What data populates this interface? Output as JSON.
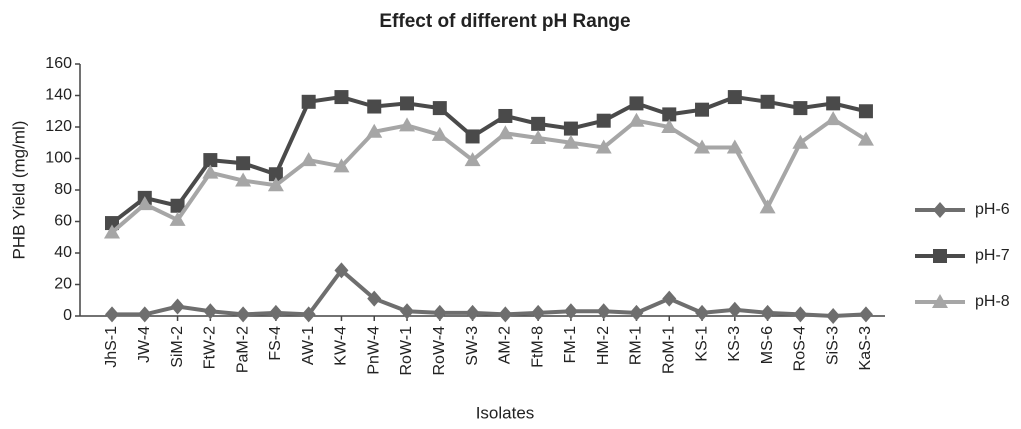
{
  "chart_data": {
    "type": "line",
    "title": "Effect of different pH Range",
    "x_label": "Isolates",
    "y_label": "PHB Yield (mg/ml)",
    "categories": [
      "JhS-1",
      "JW-4",
      "SiM-2",
      "FtW-2",
      "PaM-2",
      "FS-4",
      "AW-1",
      "KW-4",
      "PnW-4",
      "RoW-1",
      "RoW-4",
      "SW-3",
      "AM-2",
      "FtM-8",
      "FM-1",
      "HM-2",
      "RM-1",
      "RoM-1",
      "KS-1",
      "KS-3",
      "MS-6",
      "RoS-4",
      "SiS-3",
      "KaS-3"
    ],
    "series": [
      {
        "name": "pH-6",
        "color": "#6e6e6e",
        "marker": "diamond",
        "values": [
          1,
          1,
          6,
          3,
          1,
          2,
          1,
          29,
          11,
          3,
          2,
          2,
          1,
          2,
          3,
          3,
          2,
          11,
          2,
          4,
          2,
          1,
          0,
          1
        ]
      },
      {
        "name": "pH-7",
        "color": "#4a4a4a",
        "marker": "square",
        "values": [
          59,
          75,
          70,
          99,
          97,
          90,
          136,
          139,
          133,
          135,
          132,
          114,
          127,
          122,
          119,
          124,
          135,
          128,
          131,
          139,
          136,
          132,
          135,
          130
        ]
      },
      {
        "name": "pH-8",
        "color": "#a6a6a6",
        "marker": "triangle",
        "values": [
          53,
          71,
          61,
          91,
          86,
          83,
          99,
          95,
          117,
          121,
          115,
          99,
          116,
          113,
          110,
          107,
          124,
          120,
          107,
          107,
          69,
          110,
          125,
          112
        ]
      }
    ],
    "ylim": [
      0,
      160
    ],
    "yticks": [
      0,
      20,
      40,
      60,
      80,
      100,
      120,
      140,
      160
    ],
    "grid": false,
    "legend": "right"
  }
}
